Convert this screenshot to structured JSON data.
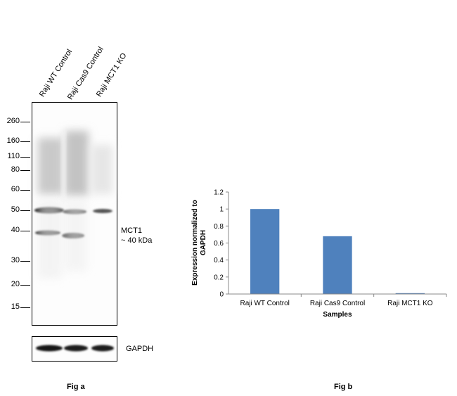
{
  "fig_a": {
    "lanes": [
      "Raji WT Control",
      "Raji Cas9 Control",
      "Raji MCT1 KO"
    ],
    "mw_markers": [
      "260",
      "160",
      "110",
      "80",
      "60",
      "50",
      "40",
      "30",
      "20",
      "15"
    ],
    "band_annotation_line1": "MCT1",
    "band_annotation_line2": "~ 40 kDa",
    "loading_control": "GAPDH",
    "caption": "Fig a"
  },
  "fig_b": {
    "caption": "Fig b"
  },
  "chart_data": {
    "type": "bar",
    "categories": [
      "Raji WT Control",
      "Raji Cas9 Control",
      "Raji MCT1 KO"
    ],
    "values": [
      1.0,
      0.68,
      0.01
    ],
    "xlabel": "Samples",
    "ylabel_line1": "Expression  normalized to",
    "ylabel_line2": "GAPDH",
    "ylim": [
      0,
      1.2
    ],
    "yticks": [
      "0",
      "0.2",
      "0.4",
      "0.6",
      "0.8",
      "1",
      "1.2"
    ],
    "bar_color": "#4f81bd",
    "grid": false
  }
}
